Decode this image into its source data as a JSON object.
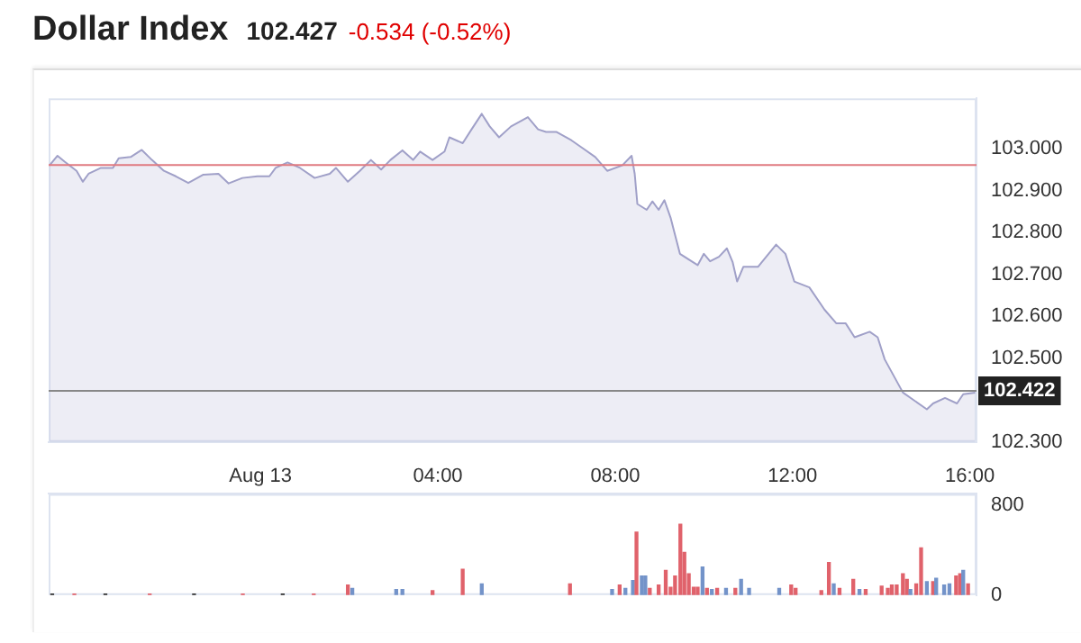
{
  "chart_data": [
    {
      "type": "area",
      "title": "Dollar Index",
      "subtitle": "102.427",
      "annotations": [
        "-0.534 (-0.52%)"
      ],
      "color": "#a0a0c8",
      "x": [
        -4.76,
        -4.58,
        -4.42,
        -4.15,
        -4.01,
        -3.88,
        -3.6,
        -3.33,
        -3.2,
        -2.93,
        -2.68,
        -2.45,
        -2.18,
        -1.91,
        -1.63,
        -1.29,
        -0.95,
        -0.72,
        -0.41,
        -0.07,
        0.2,
        0.34,
        0.61,
        0.89,
        1.22,
        1.56,
        1.7,
        1.97,
        2.24,
        2.49,
        2.72,
        2.93,
        3.2,
        3.44,
        3.6,
        3.88,
        4.15,
        4.26,
        4.56,
        4.76,
        4.99,
        5.17,
        5.38,
        5.65,
        6.03,
        6.26,
        6.44,
        6.67,
        7.01,
        7.28,
        7.55,
        7.82,
        8.16,
        8.37,
        8.44,
        8.5,
        8.71,
        8.84,
        8.98,
        9.11,
        9.25,
        9.46,
        9.86,
        10.0,
        10.14,
        10.34,
        10.52,
        10.65,
        10.75,
        10.89,
        11.22,
        11.63,
        11.84,
        12.04,
        12.38,
        12.72,
        12.99,
        13.2,
        13.4,
        13.74,
        13.92,
        14.08,
        14.49,
        15.03,
        15.17,
        15.44,
        15.71,
        15.85,
        16.12
      ],
      "values": [
        102.96,
        102.983,
        102.969,
        102.947,
        102.921,
        102.94,
        102.954,
        102.954,
        102.977,
        102.98,
        102.997,
        102.973,
        102.947,
        102.934,
        102.918,
        102.938,
        102.94,
        102.917,
        102.93,
        102.934,
        102.934,
        102.954,
        102.967,
        102.954,
        102.93,
        102.94,
        102.954,
        102.921,
        102.947,
        102.973,
        102.95,
        102.973,
        102.996,
        102.973,
        102.993,
        102.973,
        102.993,
        103.027,
        103.013,
        103.046,
        103.083,
        103.053,
        103.027,
        103.053,
        103.075,
        103.046,
        103.04,
        103.04,
        103.02,
        103.0,
        102.98,
        102.947,
        102.96,
        102.983,
        102.94,
        102.868,
        102.854,
        102.874,
        102.854,
        102.877,
        102.835,
        102.749,
        102.722,
        102.749,
        102.731,
        102.742,
        102.762,
        102.729,
        102.683,
        102.718,
        102.718,
        102.771,
        102.749,
        102.683,
        102.669,
        102.616,
        102.583,
        102.583,
        102.55,
        102.563,
        102.55,
        102.497,
        102.418,
        102.378,
        102.392,
        102.405,
        102.392,
        102.414,
        102.418
      ],
      "xlim": [
        -4.78,
        16.15
      ],
      "ylim": [
        102.3,
        103.12
      ],
      "yticks": [
        {
          "value": 102.3,
          "label": "102.300"
        },
        {
          "value": 102.5,
          "label": "102.500"
        },
        {
          "value": 102.6,
          "label": "102.600"
        },
        {
          "value": 102.7,
          "label": "102.700"
        },
        {
          "value": 102.8,
          "label": "102.800"
        },
        {
          "value": 102.9,
          "label": "102.900"
        },
        {
          "value": 103.0,
          "label": "103.000"
        }
      ],
      "ref_lines": [
        {
          "axis": "y",
          "value": 102.961,
          "color": "#e07a80"
        },
        {
          "axis": "y",
          "value": 102.422,
          "label": "102.422",
          "color": "#888888"
        }
      ],
      "tick_labels": "y"
    },
    {
      "type": "bar",
      "x": [
        -4.7,
        -4.2,
        -3.5,
        -2.5,
        -1.5,
        -0.4,
        0.5,
        1.2,
        1.97,
        2.07,
        3.06,
        3.2,
        3.88,
        4.56,
        4.99,
        6.98,
        7.93,
        8.1,
        8.23,
        8.4,
        8.48,
        8.6,
        8.68,
        8.78,
        8.98,
        9.14,
        9.25,
        9.35,
        9.47,
        9.56,
        9.66,
        9.77,
        9.86,
        9.97,
        10.07,
        10.18,
        10.3,
        10.5,
        10.71,
        10.84,
        11.02,
        11.7,
        11.97,
        12.07,
        12.65,
        12.82,
        12.93,
        13.06,
        13.37,
        13.51,
        13.65,
        14.01,
        14.15,
        14.24,
        14.35,
        14.49,
        14.58,
        14.66,
        14.79,
        14.9,
        15.03,
        15.17,
        15.24,
        15.42,
        15.54,
        15.69,
        15.78,
        15.85,
        15.96
      ],
      "values": [
        10,
        10,
        10,
        10,
        10,
        10,
        10,
        10,
        90,
        60,
        50,
        50,
        40,
        230,
        100,
        100,
        50,
        90,
        60,
        130,
        560,
        170,
        170,
        60,
        90,
        220,
        70,
        170,
        630,
        380,
        190,
        70,
        70,
        250,
        60,
        50,
        60,
        60,
        60,
        140,
        60,
        60,
        90,
        60,
        40,
        290,
        100,
        60,
        140,
        50,
        50,
        80,
        60,
        90,
        90,
        190,
        140,
        50,
        100,
        420,
        120,
        120,
        150,
        90,
        100,
        170,
        190,
        220,
        100
      ],
      "colors": [
        "#333333",
        "#e0626b",
        "#333333",
        "#e0626b",
        "#333333",
        "#e0626b",
        "#333333",
        "#e0626b",
        "#e0626b",
        "#7393c9",
        "#7393c9",
        "#7393c9",
        "#e0626b",
        "#e0626b",
        "#7393c9",
        "#e0626b",
        "#7393c9",
        "#e0626b",
        "#7393c9",
        "#7393c9",
        "#e0626b",
        "#7393c9",
        "#7393c9",
        "#e0626b",
        "#e0626b",
        "#e0626b",
        "#e0626b",
        "#e0626b",
        "#e0626b",
        "#e0626b",
        "#e0626b",
        "#e0626b",
        "#e0626b",
        "#7393c9",
        "#e0626b",
        "#7393c9",
        "#e0626b",
        "#7393c9",
        "#e0626b",
        "#7393c9",
        "#7393c9",
        "#7393c9",
        "#e0626b",
        "#e0626b",
        "#e0626b",
        "#e0626b",
        "#7393c9",
        "#e0626b",
        "#e0626b",
        "#7393c9",
        "#e0626b",
        "#e0626b",
        "#e0626b",
        "#e0626b",
        "#e0626b",
        "#e0626b",
        "#e0626b",
        "#7393c9",
        "#e0626b",
        "#e0626b",
        "#7393c9",
        "#e0626b",
        "#7393c9",
        "#7393c9",
        "#7393c9",
        "#e0626b",
        "#e0626b",
        "#7393c9",
        "#e0626b"
      ],
      "xlim": [
        -4.78,
        16.15
      ],
      "xticks": [
        {
          "value": 0,
          "label": "Aug 13"
        },
        {
          "value": 4,
          "label": "04:00"
        },
        {
          "value": 8,
          "label": "08:00"
        },
        {
          "value": 12,
          "label": "12:00"
        },
        {
          "value": 16,
          "label": "16:00"
        }
      ],
      "ylim": [
        0,
        900
      ],
      "yticks": [
        0,
        800
      ]
    }
  ]
}
